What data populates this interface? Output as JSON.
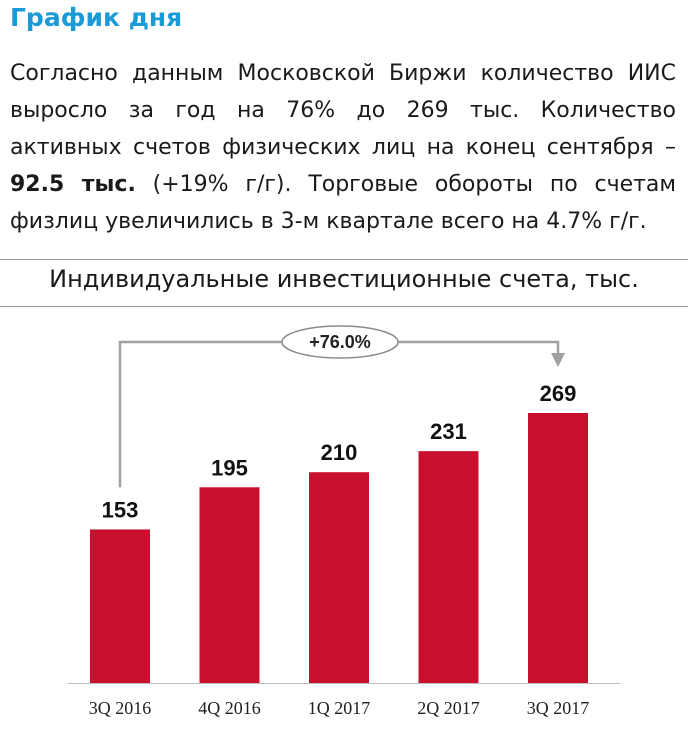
{
  "heading": "График дня",
  "paragraph": {
    "part1": "Согласно данным Московской Биржи количество ИИС выросло за год на 76% до 269 тыс. Количество активных счетов физических лиц на конец сентября – ",
    "bold": "92.5 тыс.",
    "part2": " (+19% г/г). Торговые обороты по счетам физлиц увеличились в 3-м квартале всего на 4.7% г/г."
  },
  "chart_data": {
    "type": "bar",
    "title": "Индивидуальные инвестиционные счета, тыс.",
    "categories": [
      "3Q 2016",
      "4Q 2016",
      "1Q 2017",
      "2Q 2017",
      "3Q 2017"
    ],
    "values": [
      153,
      195,
      210,
      231,
      269
    ],
    "ylim": [
      0,
      269
    ],
    "grid": false,
    "annotation": {
      "label": "+76.0%",
      "from": "3Q 2016",
      "to": "3Q 2017"
    },
    "colors": {
      "bar": "#c8102e",
      "annotation": "#a0a0a0"
    }
  }
}
